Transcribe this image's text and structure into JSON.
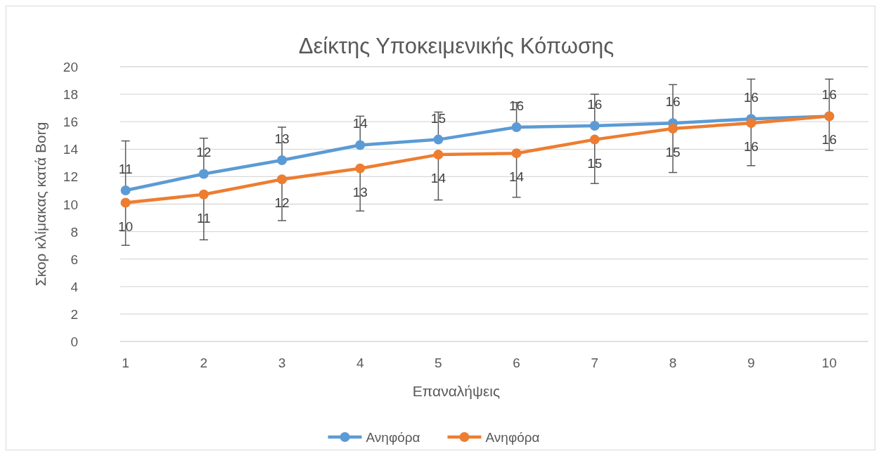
{
  "chart_data": {
    "type": "line",
    "title": "Δείκτης Υποκειμενικής Κόπωσης",
    "xlabel": "Επαναλήψεις",
    "ylabel": "Σκορ κλίμακας κατά Borg",
    "categories": [
      "1",
      "2",
      "3",
      "4",
      "5",
      "6",
      "7",
      "8",
      "9",
      "10"
    ],
    "series": [
      {
        "name": "Ανηφόρα",
        "color": "#5b9bd5",
        "values": [
          11.0,
          12.2,
          13.2,
          14.3,
          14.7,
          15.6,
          15.7,
          15.9,
          16.2,
          16.4
        ],
        "value_labels": [
          "11",
          "12",
          "13",
          "14",
          "15",
          "16",
          "16",
          "16",
          "16",
          "16"
        ],
        "errors": [
          [
            11.0,
            14.6
          ],
          [
            12.2,
            14.8
          ],
          [
            13.2,
            15.6
          ],
          [
            14.3,
            16.4
          ],
          [
            14.7,
            16.7
          ],
          [
            15.6,
            17.4
          ],
          [
            15.7,
            18.0
          ],
          [
            15.9,
            18.7
          ],
          [
            16.2,
            19.1
          ],
          [
            16.4,
            19.1
          ]
        ]
      },
      {
        "name": "Ανηφόρα",
        "color": "#ed7d31",
        "values": [
          10.1,
          10.7,
          11.8,
          12.6,
          13.6,
          13.7,
          14.7,
          15.5,
          15.9,
          16.4
        ],
        "value_labels": [
          "10",
          "11",
          "12",
          "13",
          "14",
          "14",
          "15",
          "15",
          "16",
          "16"
        ],
        "errors": [
          [
            7.0,
            10.1
          ],
          [
            7.4,
            10.7
          ],
          [
            8.8,
            11.8
          ],
          [
            9.5,
            12.6
          ],
          [
            10.3,
            13.6
          ],
          [
            10.5,
            13.7
          ],
          [
            11.5,
            14.7
          ],
          [
            12.3,
            15.5
          ],
          [
            12.8,
            15.9
          ],
          [
            13.9,
            16.4
          ]
        ]
      }
    ],
    "ylim": [
      0,
      20
    ],
    "yticks": [
      0,
      2,
      4,
      6,
      8,
      10,
      12,
      14,
      16,
      18,
      20
    ],
    "grid": "y",
    "legend": "bottom",
    "marker": "circle",
    "line_style": "solid"
  }
}
